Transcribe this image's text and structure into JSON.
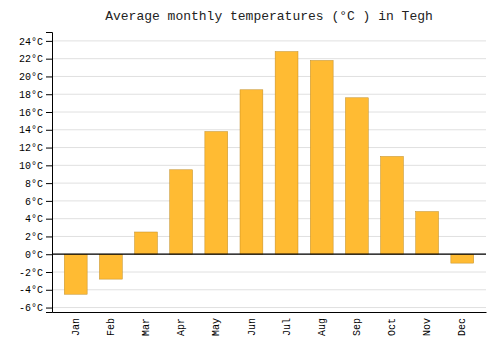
{
  "chart_data": {
    "type": "bar",
    "title": "Average monthly temperatures (°C ) in Tegh",
    "categories": [
      "Jan",
      "Feb",
      "Mar",
      "Apr",
      "May",
      "Jun",
      "Jul",
      "Aug",
      "Sep",
      "Oct",
      "Nov",
      "Dec"
    ],
    "values": [
      -4.5,
      -2.8,
      2.5,
      9.5,
      13.8,
      18.5,
      22.8,
      21.8,
      17.6,
      11.0,
      4.8,
      -1.0
    ],
    "color": "#FFBB33",
    "ylim": [
      -6.5,
      25
    ],
    "yticks": [
      {
        "value": -6,
        "label": "-6°C"
      },
      {
        "value": -4,
        "label": "-4°C"
      },
      {
        "value": -2,
        "label": "-2°C"
      },
      {
        "value": 0,
        "label": "0°C"
      },
      {
        "value": 2,
        "label": "2°C"
      },
      {
        "value": 4,
        "label": "4°C"
      },
      {
        "value": 6,
        "label": "6°C"
      },
      {
        "value": 8,
        "label": "8°C"
      },
      {
        "value": 10,
        "label": "10°C"
      },
      {
        "value": 12,
        "label": "12°C"
      },
      {
        "value": 14,
        "label": "14°C"
      },
      {
        "value": 16,
        "label": "16°C"
      },
      {
        "value": 18,
        "label": "18°C"
      },
      {
        "value": 20,
        "label": "20°C"
      },
      {
        "value": 22,
        "label": "22°C"
      },
      {
        "value": 24,
        "label": "24°C"
      }
    ],
    "grid": true
  }
}
